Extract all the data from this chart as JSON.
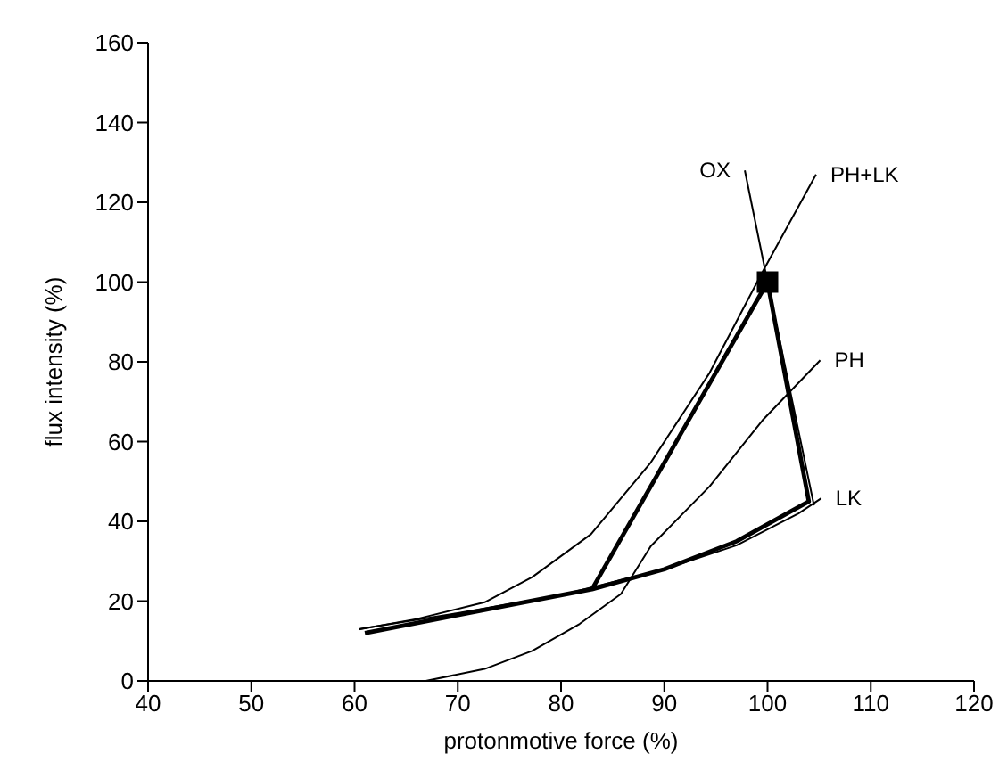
{
  "chart_data": {
    "type": "line",
    "xlabel": "protonmotive force (%)",
    "ylabel": "flux intensity (%)",
    "xlim": [
      40,
      120
    ],
    "xticks": [
      40,
      50,
      60,
      70,
      80,
      90,
      100,
      110,
      120
    ],
    "ylim": [
      0,
      160
    ],
    "yticks": [
      0,
      20,
      40,
      60,
      80,
      100,
      120,
      140,
      160
    ],
    "grid": false,
    "legend": false,
    "marker": "none",
    "line_style": "solid",
    "series": [
      {
        "name": "PH+LK",
        "color": "#000000",
        "x": [
          60.4,
          66,
          72.6,
          77.2,
          82.9,
          88.7,
          94.4,
          99.4,
          104.7
        ],
        "values": [
          12.9,
          15.5,
          19.7,
          26,
          36.8,
          54.8,
          77.3,
          102,
          127
        ]
      },
      {
        "name": "PH",
        "color": "#000000",
        "x": [
          66.9,
          72.6,
          77.2,
          81.8,
          85.8,
          88.7,
          94.4,
          99.5,
          105.1
        ],
        "values": [
          0,
          3,
          7.5,
          14.3,
          21.8,
          33.8,
          48.8,
          65.3,
          80.4
        ]
      },
      {
        "name": "LK",
        "color": "#000000",
        "x": [
          60.5,
          70,
          80,
          90,
          97,
          103,
          105.2
        ],
        "values": [
          13,
          17,
          21.5,
          28,
          34,
          42,
          45.8
        ]
      },
      {
        "name": "OX",
        "color": "#000000",
        "x": [
          104.5,
          100,
          97.8
        ],
        "values": [
          44,
          100,
          128
        ]
      },
      {
        "color": "#000000",
        "x": [
          61,
          70,
          83,
          100,
          104,
          97,
          90,
          83
        ],
        "values": [
          12,
          16.5,
          23,
          100,
          45,
          35,
          28,
          23
        ]
      },
      {
        "type": "scatter",
        "marker": "square",
        "color": "#000000",
        "x": [
          100
        ],
        "values": [
          100
        ]
      }
    ]
  }
}
